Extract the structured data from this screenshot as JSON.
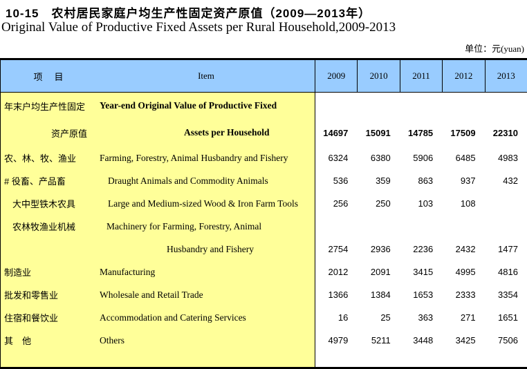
{
  "page": {
    "title_zh": "10-15　农村居民家庭户均生产性固定资产原值（2009—2013年）",
    "title_en": "Original Value of  Productive Fixed Assets per Rural Household,2009-2013",
    "unit_note": "单位：元(yuan)"
  },
  "colors": {
    "header_bg": "#99CCFF",
    "item_column_bg": "#FFFF99",
    "border": "#000000",
    "text": "#000000"
  },
  "table": {
    "header": {
      "item_zh": "项　目",
      "item_en": "Item",
      "years": [
        "2009",
        "2010",
        "2011",
        "2012",
        "2013"
      ]
    },
    "rows": [
      {
        "zh": "年末户均生产性固定",
        "en": "Year-end Original Value of Productive Fixed",
        "values": [
          "",
          "",
          "",
          "",
          ""
        ]
      },
      {
        "zh": "资产原值",
        "en": "Assets per Household",
        "values": [
          "14697",
          "15091",
          "14785",
          "17509",
          "22310"
        ]
      },
      {
        "zh": "农、林、牧、渔业",
        "en": "Farming, Forestry, Animal Husbandry and Fishery",
        "values": [
          "6324",
          "6380",
          "5906",
          "6485",
          "4983"
        ]
      },
      {
        "zh": "# 役畜、产品畜",
        "en": "Draught Animals and Commodity Animals",
        "values": [
          "536",
          "359",
          "863",
          "937",
          "432"
        ]
      },
      {
        "zh": "大中型铁木农具",
        "en": "Large and Medium-sized Wood & Iron Farm Tools",
        "values": [
          "256",
          "250",
          "103",
          "108",
          ""
        ]
      },
      {
        "zh": "农林牧渔业机械",
        "en": "Machinery for Farming, Forestry, Animal",
        "values": [
          "",
          "",
          "",
          "",
          ""
        ]
      },
      {
        "zh": "",
        "en": "Husbandry and Fishery",
        "values": [
          "2754",
          "2936",
          "2236",
          "2432",
          "1477"
        ]
      },
      {
        "zh": "制造业",
        "en": "Manufacturing",
        "values": [
          "2012",
          "2091",
          "3415",
          "4995",
          "4816"
        ]
      },
      {
        "zh": "批发和零售业",
        "en": "Wholesale and Retail Trade",
        "values": [
          "1366",
          "1384",
          "1653",
          "2333",
          "3354"
        ]
      },
      {
        "zh": "住宿和餐饮业",
        "en": "Accommodation and Catering Services",
        "values": [
          "16",
          "25",
          "363",
          "271",
          "1651"
        ]
      },
      {
        "zh": "其　他",
        "en": "Others",
        "values": [
          "4979",
          "5211",
          "3448",
          "3425",
          "7506"
        ]
      }
    ]
  }
}
